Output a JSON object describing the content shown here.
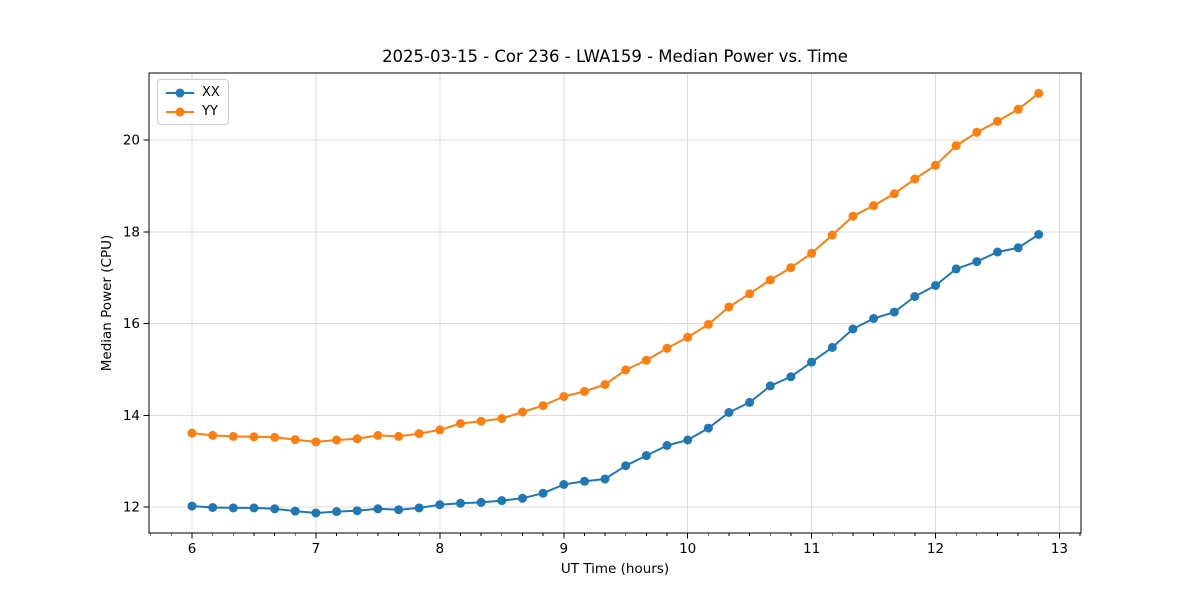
{
  "chart_data": {
    "type": "line",
    "title": "2025-03-15 - Cor 236 - LWA159 - Median Power vs. Time",
    "xlabel": "UT Time (hours)",
    "ylabel": "Median Power (CPU)",
    "x": [
      6.0,
      6.167,
      6.333,
      6.5,
      6.667,
      6.833,
      7.0,
      7.167,
      7.333,
      7.5,
      7.667,
      7.833,
      8.0,
      8.167,
      8.333,
      8.5,
      8.667,
      8.833,
      9.0,
      9.167,
      9.333,
      9.5,
      9.667,
      9.833,
      10.0,
      10.167,
      10.333,
      10.5,
      10.667,
      10.833,
      11.0,
      11.167,
      11.333,
      11.5,
      11.667,
      11.833,
      12.0,
      12.167,
      12.333,
      12.5,
      12.667,
      12.833
    ],
    "series": [
      {
        "name": "XX",
        "color": "#1f77b4",
        "marker": "circle",
        "values": [
          12.02,
          11.99,
          11.98,
          11.98,
          11.96,
          11.91,
          11.87,
          11.9,
          11.92,
          11.96,
          11.94,
          11.98,
          12.05,
          12.08,
          12.1,
          12.14,
          12.19,
          12.3,
          12.49,
          12.56,
          12.61,
          12.9,
          13.12,
          13.34,
          13.46,
          13.72,
          14.06,
          14.28,
          14.64,
          14.84,
          15.16,
          15.48,
          15.88,
          16.11,
          16.25,
          16.59,
          16.83,
          17.19,
          17.35,
          17.56,
          17.65,
          17.94
        ]
      },
      {
        "name": "YY",
        "color": "#ff7f0e",
        "marker": "circle",
        "values": [
          13.61,
          13.56,
          13.54,
          13.53,
          13.52,
          13.47,
          13.42,
          13.46,
          13.49,
          13.56,
          13.54,
          13.6,
          13.68,
          13.82,
          13.87,
          13.93,
          14.07,
          14.21,
          14.41,
          14.52,
          14.67,
          14.99,
          15.2,
          15.46,
          15.7,
          15.98,
          16.36,
          16.65,
          16.95,
          17.22,
          17.53,
          17.93,
          18.34,
          18.57,
          18.83,
          19.15,
          19.45,
          19.88,
          20.17,
          20.41,
          20.67,
          21.02
        ]
      }
    ],
    "xticks": [
      6,
      7,
      8,
      9,
      10,
      11,
      12,
      13
    ],
    "yticks": [
      12,
      14,
      16,
      18,
      20
    ],
    "xlim": [
      5.653,
      13.174
    ],
    "ylim": [
      11.433,
      21.462
    ],
    "x_minor_divisions": 6,
    "grid": true,
    "legend_position": "upper left",
    "colors": {
      "background": "#ffffff",
      "grid": "#dcdcdc",
      "axis": "#000000",
      "text": "#000000"
    }
  }
}
